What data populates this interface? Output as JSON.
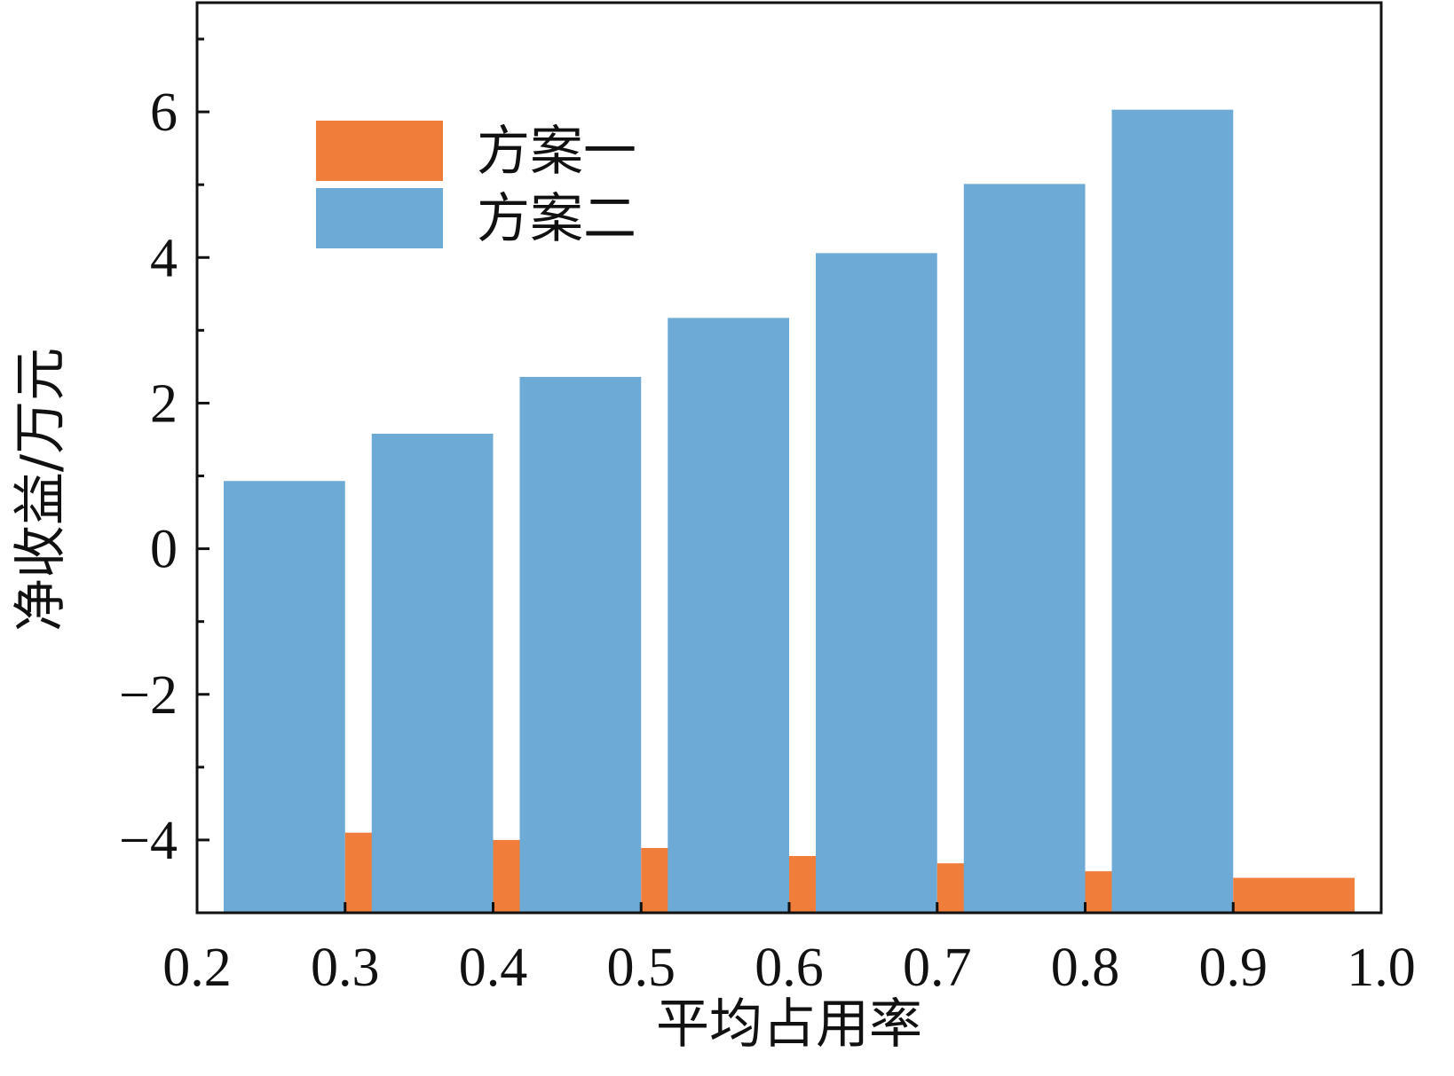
{
  "chart_data": {
    "type": "bar",
    "title": "",
    "xlabel": "平均占用率",
    "ylabel": "净收益/万元",
    "categories": [
      "0.3",
      "0.4",
      "0.5",
      "0.6",
      "0.7",
      "0.8",
      "0.9"
    ],
    "series": [
      {
        "name": "方案二",
        "color": "#6eaad6",
        "values": [
          0.93,
          1.58,
          2.36,
          3.17,
          4.06,
          5.01,
          6.03
        ]
      },
      {
        "name": "方案一",
        "color": "#f07d3a",
        "values": [
          -3.9,
          -4.0,
          -4.11,
          -4.22,
          -4.32,
          -4.43,
          -4.52
        ]
      }
    ],
    "xlim": [
      0.2,
      1.0
    ],
    "ylim": [
      -5.0,
      7.5
    ],
    "x_ticks": [
      "0.2",
      "0.3",
      "0.4",
      "0.5",
      "0.6",
      "0.7",
      "0.8",
      "0.9",
      "1.0"
    ],
    "y_ticks": [
      "−4",
      "−2",
      "0",
      "2",
      "4",
      "6"
    ],
    "y_tick_values": [
      -4,
      -2,
      0,
      2,
      4,
      6
    ],
    "legend": {
      "placement": "top-left",
      "entries": [
        {
          "label": "方案一",
          "color": "#f07d3a"
        },
        {
          "label": "方案二",
          "color": "#6eaad6"
        }
      ]
    },
    "grid": false
  }
}
